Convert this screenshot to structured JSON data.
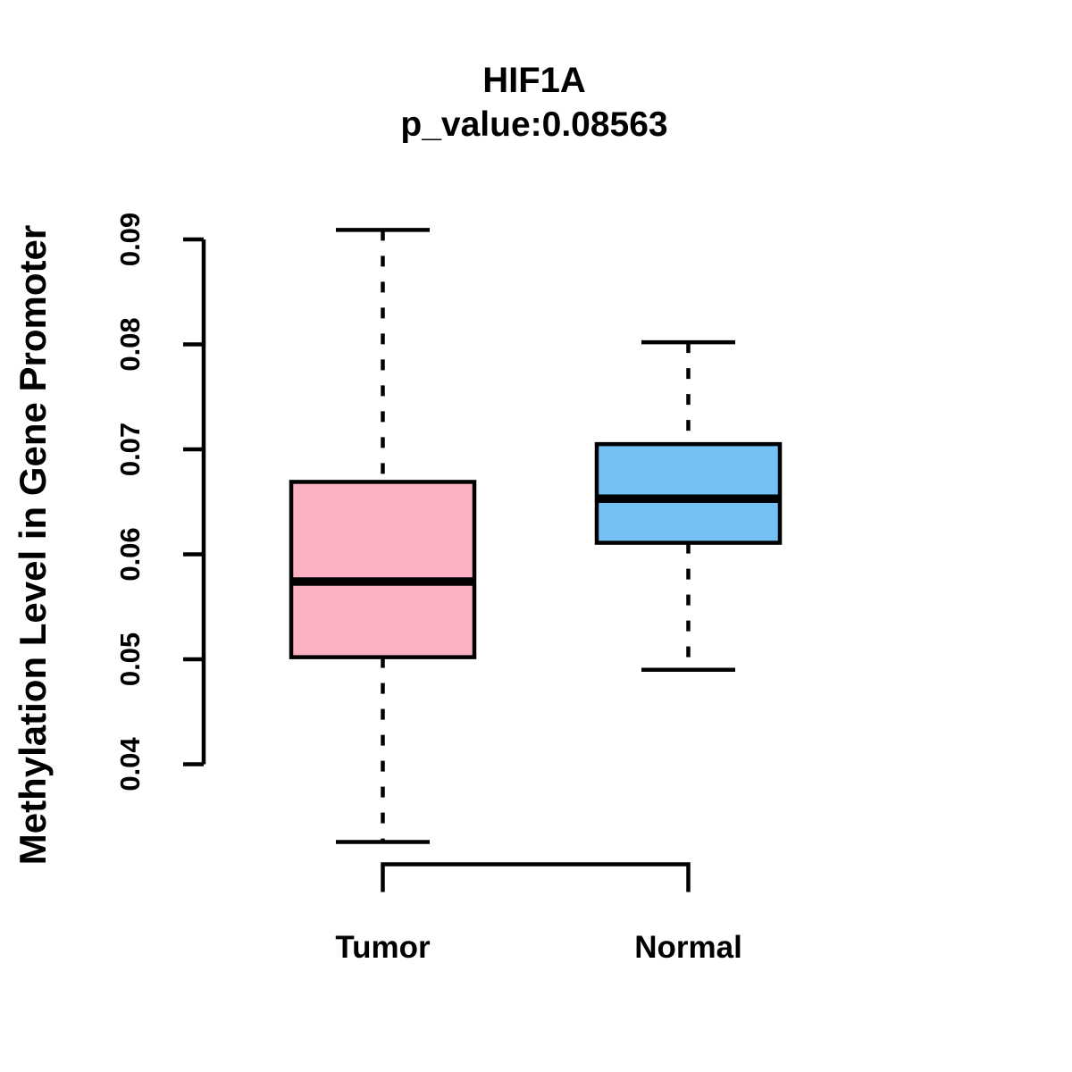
{
  "chart_data": {
    "type": "boxplot",
    "title": "HIF1A",
    "subtitle": "p_value:0.08563",
    "ylabel": "Methylation Level in Gene Promoter",
    "categories": [
      "Tumor",
      "Normal"
    ],
    "yticks": [
      "0.04",
      "0.05",
      "0.06",
      "0.07",
      "0.08",
      "0.09"
    ],
    "axis_range": [
      0.04,
      0.09
    ],
    "grid": "off",
    "legend": "none",
    "whisker_line_style": "dashed",
    "box_border_color": "#000000",
    "median_color": "#000000",
    "groups": [
      {
        "label": "Tumor",
        "color": "#FDB2C3",
        "whisker_low": 0.0326,
        "q1": 0.0502,
        "median": 0.0574,
        "q3": 0.0669,
        "whisker_high": 0.0909
      },
      {
        "label": "Normal",
        "color": "#74C1F5",
        "whisker_low": 0.049,
        "q1": 0.0611,
        "median": 0.0653,
        "q3": 0.0705,
        "whisker_high": 0.0802
      }
    ]
  }
}
